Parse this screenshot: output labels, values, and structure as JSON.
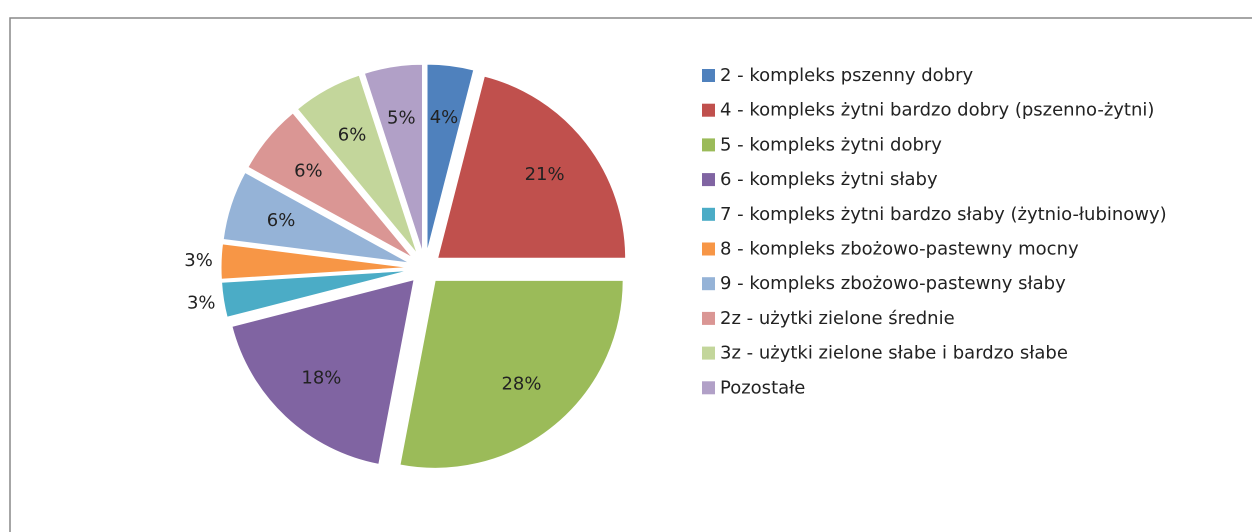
{
  "chart_data": {
    "type": "pie",
    "categories": [
      "2 - kompleks pszenny dobry",
      "4 - kompleks żytni bardzo dobry (pszenno-żytni)",
      "5 - kompleks żytni dobry",
      "6 - kompleks żytni słaby",
      "7 - kompleks żytni bardzo słaby (żytnio-łubinowy)",
      "8 - kompleks zbożowo-pastewny mocny",
      "9 - kompleks zbożowo-pastewny słaby",
      "2z - użytki zielone średnie",
      "3z - użytki zielone słabe i bardzo słabe",
      "Pozostałe"
    ],
    "values": [
      4,
      21,
      28,
      18,
      3,
      3,
      6,
      6,
      6,
      5
    ],
    "value_labels": [
      "4%",
      "21%",
      "28%",
      "18%",
      "3%",
      "3%",
      "6%",
      "6%",
      "6%",
      "5%"
    ],
    "colors": [
      "#4F81BD",
      "#C0504D",
      "#9BBB59",
      "#8064A2",
      "#4BACC6",
      "#F79646",
      "#95B3D7",
      "#DA9694",
      "#C3D69B",
      "#B1A0C7"
    ],
    "legend": "right"
  }
}
